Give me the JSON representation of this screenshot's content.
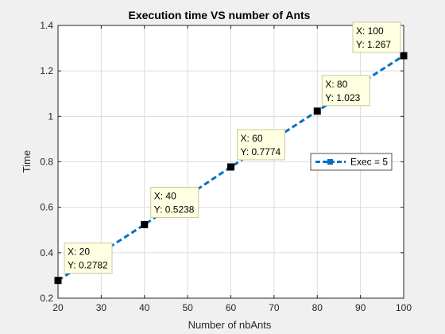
{
  "chart_data": {
    "type": "line",
    "title": "Execution time VS number of Ants",
    "xlabel": "Number of nbAnts",
    "ylabel": "Time",
    "xlim": [
      20,
      100
    ],
    "ylim": [
      0.2,
      1.4
    ],
    "x_ticks": [
      20,
      30,
      40,
      50,
      60,
      70,
      80,
      90,
      100
    ],
    "y_ticks": [
      0.2,
      0.4,
      0.6,
      0.8,
      1,
      1.2,
      1.4
    ],
    "grid": true,
    "legend_position": "center-right",
    "series": [
      {
        "name": "Exec = 5",
        "color": "#0072bd",
        "line_style": "dashed",
        "x": [
          20,
          40,
          60,
          80,
          100
        ],
        "y": [
          0.2782,
          0.5238,
          0.7774,
          1.023,
          1.267
        ]
      }
    ],
    "annotations": [
      {
        "x_text": "X: 20",
        "y_text": "Y: 0.2782",
        "x": 20,
        "y": 0.2782
      },
      {
        "x_text": "X: 40",
        "y_text": "Y: 0.5238",
        "x": 40,
        "y": 0.5238
      },
      {
        "x_text": "X: 60",
        "y_text": "Y: 0.7774",
        "x": 60,
        "y": 0.7774
      },
      {
        "x_text": "X: 80",
        "y_text": "Y: 1.023",
        "x": 80,
        "y": 1.023
      },
      {
        "x_text": "X: 100",
        "y_text": "Y: 1.267",
        "x": 100,
        "y": 1.267
      }
    ]
  }
}
